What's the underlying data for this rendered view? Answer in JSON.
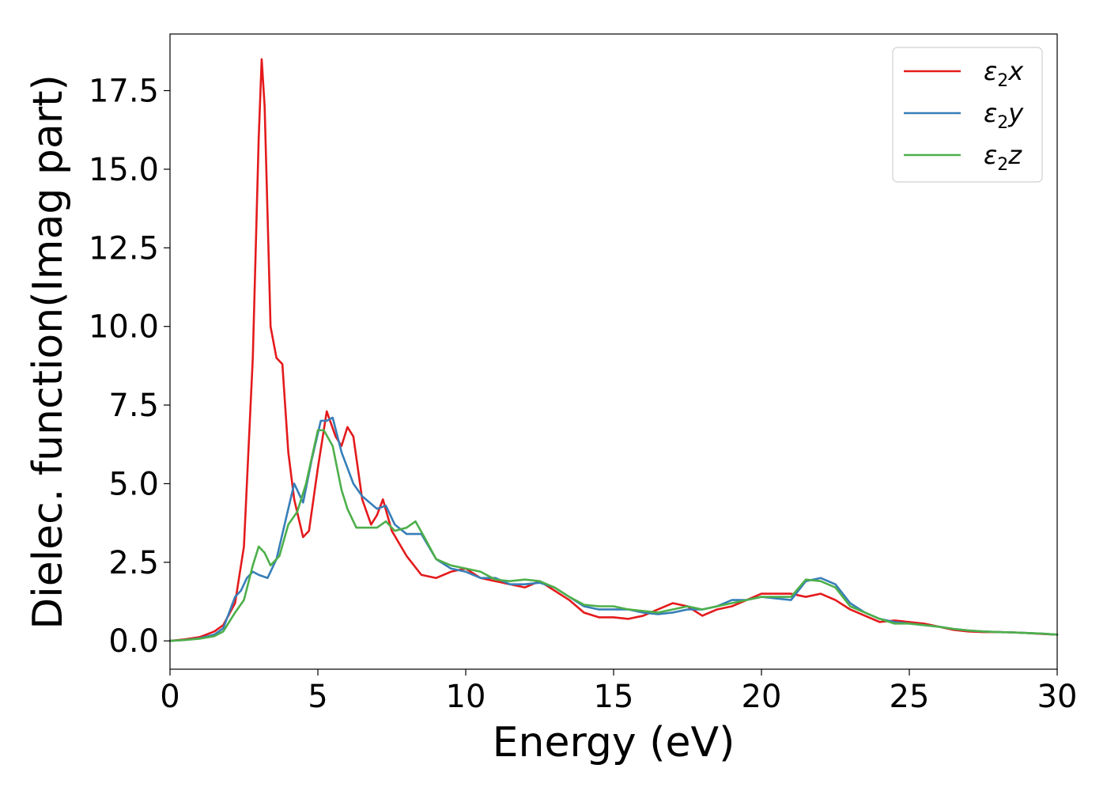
{
  "chart_data": {
    "type": "line",
    "title": "",
    "xlabel": "Energy (eV)",
    "ylabel": "Dielec. function(Imag part)",
    "xlim": [
      0,
      30
    ],
    "ylim": [
      -0.9,
      19.3
    ],
    "xticks": [
      0,
      5,
      10,
      15,
      20,
      25,
      30
    ],
    "xtick_labels": [
      "0",
      "5",
      "10",
      "15",
      "20",
      "25",
      "30"
    ],
    "yticks": [
      0,
      2.5,
      5,
      7.5,
      10,
      12.5,
      15,
      17.5
    ],
    "ytick_labels": [
      "0.0",
      "2.5",
      "5.0",
      "7.5",
      "10.0",
      "12.5",
      "15.0",
      "17.5"
    ],
    "grid": false,
    "legend_position": "top-right",
    "series": [
      {
        "name": "ε₂x",
        "legend_base": "ε",
        "legend_sub": "2",
        "legend_var": "x",
        "color": "#e41a1c",
        "x": [
          0,
          0.5,
          1,
          1.5,
          1.8,
          2.2,
          2.5,
          2.8,
          3.0,
          3.1,
          3.2,
          3.4,
          3.6,
          3.8,
          4.0,
          4.2,
          4.5,
          4.7,
          5.0,
          5.3,
          5.6,
          5.8,
          6.0,
          6.2,
          6.5,
          6.8,
          7.0,
          7.2,
          7.5,
          8.0,
          8.5,
          9.0,
          9.5,
          10.0,
          10.5,
          11.0,
          11.5,
          12.0,
          12.5,
          13.0,
          13.5,
          14.0,
          14.5,
          15.0,
          15.5,
          16.0,
          16.5,
          17.0,
          17.5,
          18.0,
          18.5,
          19.0,
          19.5,
          20.0,
          20.5,
          21.0,
          21.5,
          22.0,
          22.5,
          23.0,
          23.5,
          24.0,
          24.5,
          25.0,
          25.5,
          26.0,
          26.5,
          27.0,
          27.5,
          28.0,
          28.5,
          29.0,
          29.5,
          30.0
        ],
        "y": [
          0.0,
          0.05,
          0.12,
          0.3,
          0.5,
          1.2,
          3.0,
          9.0,
          16.0,
          18.5,
          17.0,
          10.0,
          9.0,
          8.8,
          6.0,
          4.5,
          3.3,
          3.5,
          5.5,
          7.3,
          6.5,
          6.2,
          6.8,
          6.5,
          4.5,
          3.7,
          4.0,
          4.5,
          3.5,
          2.7,
          2.1,
          2.0,
          2.2,
          2.3,
          2.0,
          1.9,
          1.8,
          1.7,
          1.9,
          1.6,
          1.3,
          0.9,
          0.75,
          0.75,
          0.7,
          0.8,
          1.0,
          1.2,
          1.1,
          0.8,
          1.0,
          1.1,
          1.3,
          1.5,
          1.5,
          1.5,
          1.4,
          1.5,
          1.3,
          1.0,
          0.8,
          0.6,
          0.65,
          0.6,
          0.55,
          0.45,
          0.35,
          0.3,
          0.28,
          0.28,
          0.27,
          0.25,
          0.22,
          0.2
        ]
      },
      {
        "name": "ε₂y",
        "legend_base": "ε",
        "legend_sub": "2",
        "legend_var": "y",
        "color": "#377eb8",
        "x": [
          0,
          0.5,
          1,
          1.5,
          1.8,
          2.0,
          2.2,
          2.4,
          2.6,
          2.8,
          3.0,
          3.3,
          3.6,
          3.9,
          4.2,
          4.5,
          4.8,
          5.1,
          5.3,
          5.5,
          5.8,
          6.2,
          6.5,
          7.0,
          7.3,
          7.6,
          8.0,
          8.5,
          9.0,
          9.5,
          10.0,
          10.5,
          11.0,
          11.5,
          12.0,
          12.5,
          13.0,
          13.5,
          14.0,
          14.5,
          15.0,
          15.5,
          16.0,
          16.5,
          17.0,
          17.5,
          18.0,
          18.5,
          19.0,
          19.5,
          20.0,
          20.5,
          21.0,
          21.5,
          22.0,
          22.5,
          23.0,
          23.5,
          24.0,
          24.5,
          25.0,
          25.5,
          26.0,
          26.5,
          27.0,
          27.5,
          28.0,
          28.5,
          29.0,
          29.5,
          30.0
        ],
        "y": [
          0.0,
          0.03,
          0.08,
          0.2,
          0.4,
          0.9,
          1.4,
          1.6,
          2.0,
          2.2,
          2.1,
          2.0,
          2.6,
          3.8,
          5.0,
          4.4,
          5.8,
          7.0,
          7.0,
          7.1,
          6.0,
          5.0,
          4.6,
          4.2,
          4.3,
          3.7,
          3.4,
          3.4,
          2.6,
          2.3,
          2.2,
          2.0,
          2.0,
          1.8,
          1.8,
          1.85,
          1.7,
          1.4,
          1.1,
          1.0,
          1.0,
          1.0,
          0.9,
          0.85,
          0.9,
          1.0,
          1.0,
          1.1,
          1.3,
          1.3,
          1.4,
          1.35,
          1.3,
          1.9,
          2.0,
          1.8,
          1.2,
          0.9,
          0.7,
          0.6,
          0.55,
          0.5,
          0.45,
          0.38,
          0.33,
          0.3,
          0.28,
          0.27,
          0.25,
          0.23,
          0.2
        ]
      },
      {
        "name": "ε₂z",
        "legend_base": "ε",
        "legend_sub": "2",
        "legend_var": "z",
        "color": "#4daf4a",
        "x": [
          0,
          0.5,
          1,
          1.5,
          1.8,
          2.0,
          2.2,
          2.5,
          2.8,
          3.0,
          3.2,
          3.4,
          3.7,
          4.0,
          4.3,
          4.6,
          5.0,
          5.2,
          5.5,
          5.8,
          6.0,
          6.3,
          6.6,
          7.0,
          7.3,
          7.6,
          8.0,
          8.3,
          8.6,
          9.0,
          9.5,
          10.0,
          10.5,
          11.0,
          11.5,
          12.0,
          12.5,
          13.0,
          13.5,
          14.0,
          14.5,
          15.0,
          15.5,
          16.0,
          16.5,
          17.0,
          17.5,
          18.0,
          18.5,
          19.0,
          19.5,
          20.0,
          20.5,
          21.0,
          21.5,
          22.0,
          22.5,
          23.0,
          23.5,
          24.0,
          24.5,
          25.0,
          25.5,
          26.0,
          26.5,
          27.0,
          27.5,
          28.0,
          28.5,
          29.0,
          29.5,
          30.0
        ],
        "y": [
          0.0,
          0.03,
          0.07,
          0.15,
          0.3,
          0.6,
          0.9,
          1.3,
          2.4,
          3.0,
          2.8,
          2.4,
          2.7,
          3.7,
          4.1,
          5.0,
          6.7,
          6.7,
          6.2,
          4.8,
          4.2,
          3.6,
          3.6,
          3.6,
          3.8,
          3.5,
          3.6,
          3.8,
          3.3,
          2.6,
          2.4,
          2.3,
          2.2,
          1.95,
          1.9,
          1.95,
          1.9,
          1.7,
          1.4,
          1.15,
          1.1,
          1.1,
          1.0,
          0.95,
          0.9,
          1.0,
          1.1,
          1.0,
          1.1,
          1.2,
          1.3,
          1.4,
          1.4,
          1.4,
          1.95,
          1.9,
          1.7,
          1.1,
          0.9,
          0.7,
          0.55,
          0.55,
          0.5,
          0.45,
          0.38,
          0.33,
          0.3,
          0.28,
          0.27,
          0.25,
          0.23,
          0.2
        ]
      }
    ]
  }
}
